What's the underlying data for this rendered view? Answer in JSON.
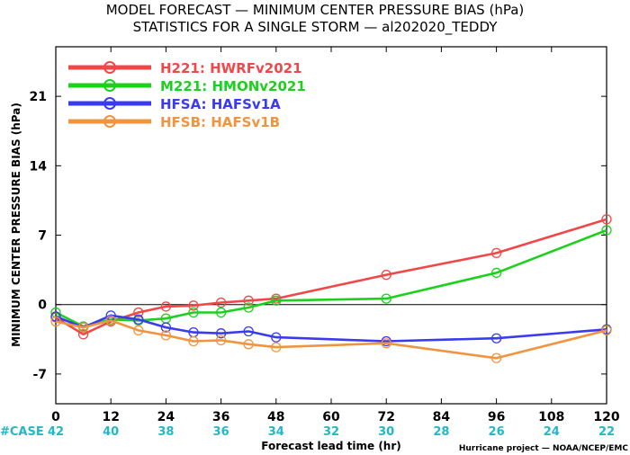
{
  "chart_data": {
    "type": "line",
    "title": "MODEL FORECAST — MINIMUM CENTER PRESSURE BIAS (hPa)",
    "subtitle": "STATISTICS FOR A SINGLE STORM — al202020_TEDDY",
    "xlabel": "Forecast lead time (hr)",
    "ylabel": "MINIMUM CENTER PRESSURE BIAS (hPa)",
    "xlim": [
      0,
      120
    ],
    "ylim": [
      -10,
      26
    ],
    "xticks": [
      0,
      12,
      24,
      36,
      48,
      60,
      72,
      84,
      96,
      108,
      120
    ],
    "xtick_labels": [
      "0",
      "12",
      "24",
      "36",
      "48",
      "60",
      "72",
      "84",
      "96",
      "108",
      "120"
    ],
    "yticks": [
      -7,
      0,
      7,
      14,
      21
    ],
    "ytick_labels": [
      "-7",
      "0",
      "7",
      "14",
      "21"
    ],
    "zero_line": 0,
    "grid": false,
    "legend_position": "top-left",
    "case_label": "#CASE",
    "case_counts": [
      "42",
      "40",
      "38",
      "36",
      "34",
      "32",
      "30",
      "28",
      "26",
      "24",
      "22"
    ],
    "credit": "Hurricane project — NOAA/NCEP/EMC",
    "series": [
      {
        "name": "H221: HWRFv2021",
        "color": "#f04848",
        "x": [
          0,
          6,
          12,
          18,
          24,
          30,
          36,
          42,
          48,
          72,
          96,
          120
        ],
        "y": [
          -1.3,
          -3.0,
          -1.7,
          -0.8,
          -0.2,
          -0.1,
          0.2,
          0.4,
          0.6,
          3.0,
          5.2,
          8.6
        ]
      },
      {
        "name": "M221: HMONv2021",
        "color": "#1ed01e",
        "x": [
          0,
          6,
          12,
          18,
          24,
          30,
          36,
          42,
          48,
          72,
          96,
          120
        ],
        "y": [
          -0.8,
          -2.2,
          -1.5,
          -1.6,
          -1.4,
          -0.8,
          -0.8,
          -0.3,
          0.4,
          0.6,
          3.2,
          7.5
        ]
      },
      {
        "name": "HFSA: HAFSv1A",
        "color": "#3a3af0",
        "x": [
          0,
          6,
          12,
          18,
          24,
          30,
          36,
          42,
          48,
          72,
          96,
          120
        ],
        "y": [
          -1.2,
          -2.3,
          -1.1,
          -1.5,
          -2.3,
          -2.8,
          -2.9,
          -2.7,
          -3.3,
          -3.7,
          -3.4,
          -2.5
        ]
      },
      {
        "name": "HFSB: HAFSv1B",
        "color": "#f09440",
        "x": [
          0,
          6,
          12,
          18,
          24,
          30,
          36,
          42,
          48,
          72,
          96,
          120
        ],
        "y": [
          -1.7,
          -2.3,
          -1.6,
          -2.6,
          -3.1,
          -3.7,
          -3.6,
          -4.0,
          -4.3,
          -3.9,
          -5.4,
          -2.6
        ]
      }
    ]
  }
}
